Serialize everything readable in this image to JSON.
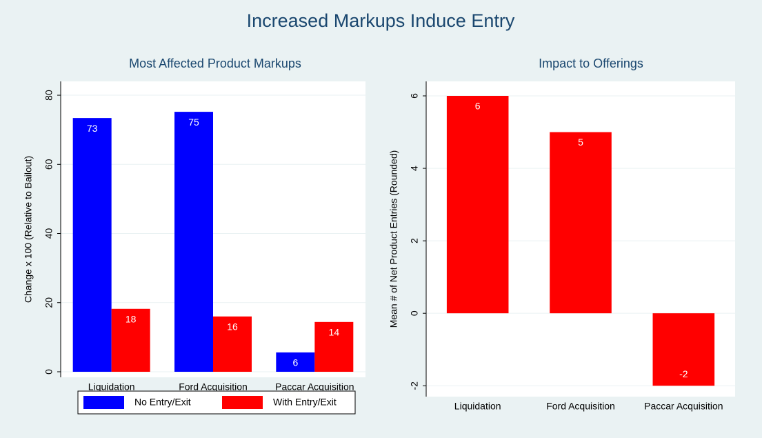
{
  "title": "Increased Markups Induce Entry",
  "chart_data": [
    {
      "type": "bar",
      "title": "Most Affected Product Markups",
      "ylabel": "Change x 100 (Relative to Bailout)",
      "categories": [
        "Liquidation",
        "Ford Acquisition",
        "Paccar Acquisition"
      ],
      "series": [
        {
          "name": "No Entry/Exit",
          "color": "#0000ff",
          "values": [
            73.4,
            75.2,
            5.6
          ],
          "value_labels": [
            "73",
            "75",
            "6"
          ]
        },
        {
          "name": "With Entry/Exit",
          "color": "#ff0000",
          "values": [
            18.2,
            16.0,
            14.4
          ],
          "value_labels": [
            "18",
            "16",
            "14"
          ]
        }
      ],
      "ylim": [
        -1.6,
        84
      ],
      "yticks": [
        0,
        20,
        40,
        60,
        80
      ],
      "grid": true,
      "legend": "bottom"
    },
    {
      "type": "bar",
      "title": "Impact to Offerings",
      "ylabel": "Mean # of Net Product Entries (Rounded)",
      "categories": [
        "Liquidation",
        "Ford Acquisition",
        "Paccar Acquisition"
      ],
      "series": [
        {
          "color": "#ff0000",
          "values": [
            6,
            5,
            -2
          ]
        }
      ],
      "ylim": [
        -2.3,
        6.4
      ],
      "yticks": [
        -2,
        0,
        2,
        4,
        6
      ],
      "grid": true
    }
  ]
}
